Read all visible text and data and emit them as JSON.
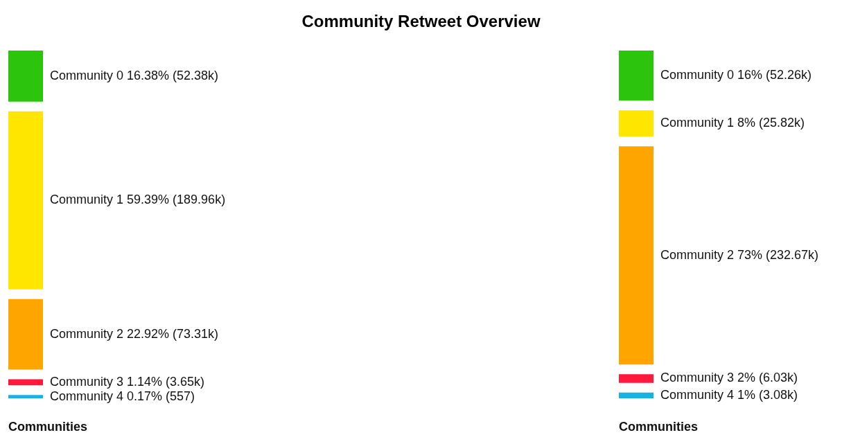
{
  "chart_data": {
    "type": "other",
    "title": "Community Retweet Overview",
    "categories": [
      "Community 0",
      "Community 1",
      "Community 2",
      "Community 3",
      "Community 4"
    ],
    "series": [
      {
        "values": [
          16.38,
          59.39,
          22.92,
          1.14,
          0.17
        ],
        "value_labels": [
          "16.38% (52.38k)",
          "59.39% (189.96k)",
          "22.92% (73.31k)",
          "1.14% (3.65k)",
          "0.17% (557)"
        ],
        "colors": [
          "#2dc40e",
          "#ffe600",
          "#ffa500",
          "#ff1a3c",
          "#1ab0e6"
        ]
      },
      {
        "values": [
          16,
          8,
          73,
          2,
          1
        ],
        "value_labels": [
          "16% (52.26k)",
          "8% (25.82k)",
          "73% (232.67k)",
          "2% (6.03k)",
          "1% (3.08k)"
        ],
        "colors": [
          "#2dc40e",
          "#ffe600",
          "#ffa500",
          "#ff1a3c",
          "#1ab0e6"
        ]
      }
    ],
    "annotations": [
      "Communities",
      "Communities"
    ]
  }
}
